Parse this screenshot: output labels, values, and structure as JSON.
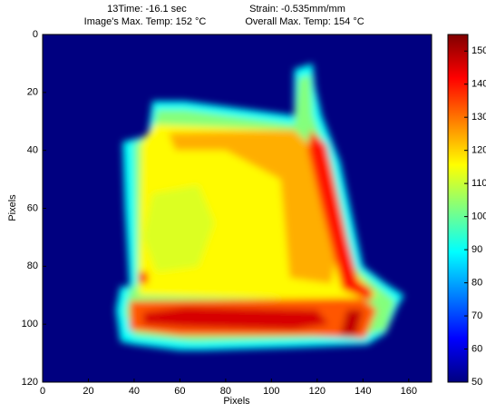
{
  "chart_data": {
    "type": "heatmap",
    "title_lines": [
      "13Time: -16.1 sec",
      "Strain: -0.535mm/mm",
      "Image's Max. Temp: 152 °C",
      "Overall Max. Temp: 154 °C"
    ],
    "xlabel": "Pixels",
    "ylabel": "Pixels",
    "xlim": [
      0,
      170
    ],
    "ylim": [
      120,
      0
    ],
    "xticks": [
      0,
      20,
      40,
      60,
      80,
      100,
      120,
      140,
      160
    ],
    "yticks": [
      0,
      20,
      40,
      60,
      80,
      100,
      120
    ],
    "clim": [
      50,
      155
    ],
    "cticks": [
      50,
      60,
      70,
      80,
      90,
      100,
      110,
      120,
      130,
      140,
      150
    ],
    "colormap": "jet",
    "base_value": 50,
    "regions": [
      {
        "points": [
          [
            35,
            37
          ],
          [
            46,
            35
          ],
          [
            48,
            23
          ],
          [
            62,
            23
          ],
          [
            110,
            28
          ],
          [
            110,
            12
          ],
          [
            118,
            10
          ],
          [
            119,
            18
          ],
          [
            122,
            28
          ],
          [
            130,
            44
          ],
          [
            140,
            80
          ],
          [
            150,
            86
          ],
          [
            158,
            90
          ],
          [
            155,
            94
          ],
          [
            150,
            103
          ],
          [
            142,
            107
          ],
          [
            110,
            108
          ],
          [
            70,
            109
          ],
          [
            60,
            109
          ],
          [
            40,
            107
          ],
          [
            34,
            106
          ],
          [
            32,
            95
          ],
          [
            34,
            87
          ],
          [
            38,
            87
          ],
          [
            36,
            60
          ]
        ],
        "value": 90
      },
      {
        "points": [
          [
            40,
            38
          ],
          [
            48,
            33
          ],
          [
            50,
            26
          ],
          [
            62,
            26
          ],
          [
            110,
            31
          ],
          [
            112,
            15
          ],
          [
            117,
            14
          ],
          [
            118,
            28
          ],
          [
            126,
            44
          ],
          [
            136,
            80
          ],
          [
            148,
            88
          ],
          [
            154,
            92
          ],
          [
            150,
            102
          ],
          [
            140,
            104
          ],
          [
            110,
            105
          ],
          [
            66,
            106
          ],
          [
            40,
            104
          ],
          [
            36,
            96
          ],
          [
            38,
            88
          ],
          [
            41,
            86
          ]
        ],
        "value": 103
      },
      {
        "points": [
          [
            43,
            38
          ],
          [
            49,
            31
          ],
          [
            110,
            33
          ],
          [
            126,
            46
          ],
          [
            134,
            80
          ],
          [
            146,
            90
          ],
          [
            140,
            92
          ],
          [
            42,
            90
          ]
        ],
        "value": 116
      },
      {
        "points": [
          [
            55,
            34
          ],
          [
            110,
            33
          ],
          [
            122,
            42
          ],
          [
            130,
            70
          ],
          [
            126,
            86
          ],
          [
            108,
            84
          ],
          [
            104,
            50
          ],
          [
            80,
            40
          ],
          [
            58,
            40
          ]
        ],
        "value": 124
      },
      {
        "points": [
          [
            117,
            33
          ],
          [
            124,
            38
          ],
          [
            133,
            70
          ],
          [
            138,
            85
          ],
          [
            144,
            88
          ],
          [
            144,
            92
          ],
          [
            131,
            88
          ],
          [
            122,
            60
          ],
          [
            116,
            40
          ]
        ],
        "value": 140
      },
      {
        "points": [
          [
            38,
            92
          ],
          [
            140,
            91
          ],
          [
            146,
            95
          ],
          [
            141,
            105
          ],
          [
            118,
            104
          ],
          [
            60,
            104
          ],
          [
            38,
            102
          ]
        ],
        "value": 133
      },
      {
        "points": [
          [
            44,
            96
          ],
          [
            62,
            94
          ],
          [
            120,
            95
          ],
          [
            125,
            100
          ],
          [
            110,
            102
          ],
          [
            62,
            101
          ],
          [
            44,
            100
          ]
        ],
        "value": 146
      },
      {
        "points": [
          [
            133,
            95
          ],
          [
            140,
            95
          ],
          [
            137,
            104
          ],
          [
            130,
            104
          ]
        ],
        "value": 148
      },
      {
        "points": [
          [
            42,
            82
          ],
          [
            46,
            82
          ],
          [
            46,
            86
          ],
          [
            42,
            86
          ]
        ],
        "value": 138
      },
      {
        "points": [
          [
            48,
            55
          ],
          [
            68,
            52
          ],
          [
            75,
            65
          ],
          [
            68,
            80
          ],
          [
            50,
            82
          ],
          [
            44,
            70
          ]
        ],
        "value": 112
      }
    ]
  }
}
